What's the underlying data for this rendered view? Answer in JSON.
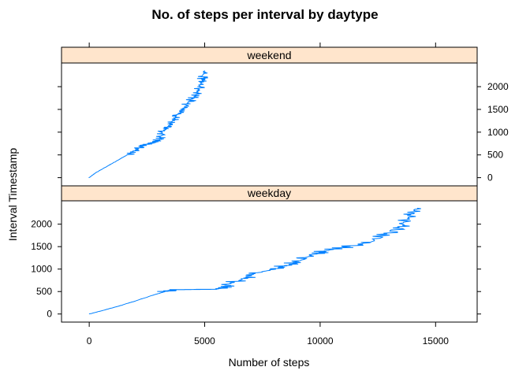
{
  "chart_data": {
    "type": "line",
    "title": "No. of steps per interval by daytype",
    "xlabel": "Number of steps",
    "ylabel": "Interval Timestamp",
    "xlim": [
      -1200,
      16800
    ],
    "ylim": [
      -180,
      2520
    ],
    "x_ticks": [
      0,
      5000,
      10000,
      15000
    ],
    "x_tick_labels": [
      "0",
      "5000",
      "10000",
      "15000"
    ],
    "y_ticks": [
      0,
      500,
      1000,
      1500,
      2000
    ],
    "y_tick_labels": [
      "0",
      "500",
      "1000",
      "1500",
      "2000"
    ],
    "line_color": "#0080ff",
    "strip_color": "#ffe5cc",
    "grid": false,
    "panels": [
      {
        "label": "weekend",
        "y_axis_side": "right",
        "x_cumulative_steps": [
          0,
          250,
          600,
          950,
          1300,
          1650,
          1950,
          2150,
          2300,
          2450,
          2600,
          2800,
          2950,
          3050,
          3100,
          3180,
          3350,
          3500,
          3700,
          3850,
          4000,
          4200,
          4400,
          4600,
          4700,
          4800,
          4850,
          4920,
          5000
        ],
        "y_interval": [
          0,
          100,
          200,
          300,
          400,
          500,
          600,
          650,
          700,
          730,
          760,
          790,
          820,
          850,
          900,
          1000,
          1100,
          1200,
          1300,
          1400,
          1500,
          1600,
          1700,
          1800,
          1900,
          2000,
          2100,
          2200,
          2355
        ]
      },
      {
        "label": "weekday",
        "y_axis_side": "left",
        "x_cumulative_steps": [
          0,
          600,
          1300,
          2000,
          2700,
          3300,
          3600,
          4200,
          4900,
          5500,
          5800,
          6200,
          6700,
          7200,
          8000,
          8600,
          9200,
          9500,
          10200,
          11200,
          12200,
          12900,
          13600,
          14000,
          14200
        ],
        "y_interval": [
          0,
          80,
          180,
          290,
          410,
          500,
          540,
          545,
          548,
          550,
          600,
          700,
          800,
          900,
          1000,
          1100,
          1200,
          1300,
          1400,
          1500,
          1600,
          1800,
          2000,
          2200,
          2355
        ]
      }
    ]
  }
}
